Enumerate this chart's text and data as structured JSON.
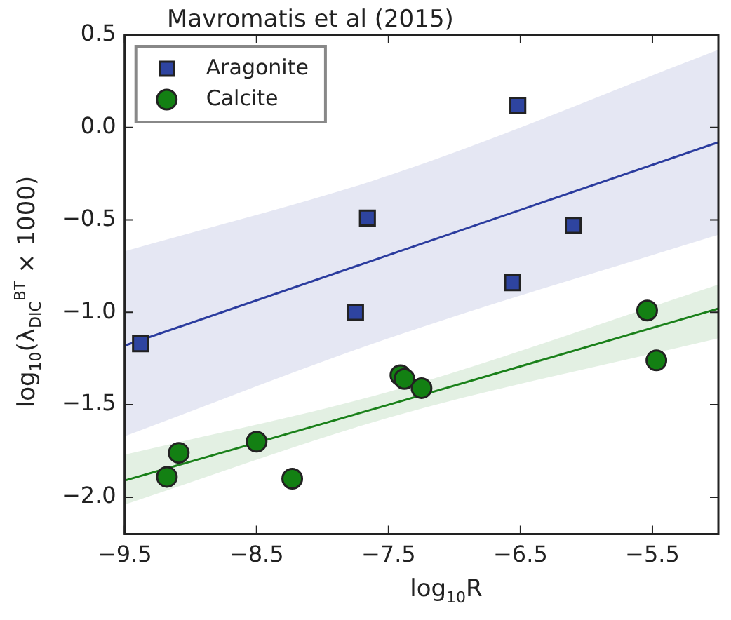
{
  "chart_data": {
    "type": "scatter",
    "title": "Mavromatis et al (2015)",
    "xlabel": "log$_{10}$R",
    "ylabel": "log$_{10}$(λ$_{DIC}$$^{BT}$ × 1000)",
    "xlim": [
      -9.5,
      -5
    ],
    "xticks": [
      -9.5,
      -8.5,
      -7.5,
      -6.5,
      -5.5
    ],
    "ylim": [
      -2.2,
      0.5
    ],
    "yticks": [
      {
        "value": -2,
        "label": "−2.0"
      },
      -1.5,
      {
        "value": -1,
        "label": "−1.0"
      },
      -0.5,
      {
        "value": 0,
        "label": "0.0"
      },
      0.5
    ],
    "grid": false,
    "legend": "top left",
    "series": [
      {
        "type": "line",
        "color": "#2b3c9e",
        "marker": "none",
        "x": [
          -9.5,
          -7.5,
          -5
        ],
        "values": [
          -1.18,
          -0.69,
          -0.08
        ],
        "lower": [
          -1.67,
          -1.14,
          -0.58
        ],
        "upper": [
          -0.67,
          -0.26,
          0.42
        ]
      },
      {
        "type": "line",
        "color": "#1a801a",
        "marker": "none",
        "x": [
          -9.5,
          -7.5,
          -5
        ],
        "values": [
          -1.91,
          -1.5,
          -0.98
        ],
        "lower": [
          -2.04,
          -1.57,
          -1.14
        ],
        "upper": [
          -1.77,
          -1.43,
          -0.85
        ]
      },
      {
        "name": "Aragonite",
        "color": "#2e44a0",
        "marker": "square",
        "x": [
          -9.38,
          -7.75,
          -7.66,
          -6.56,
          -6.52,
          -6.1
        ],
        "values": [
          -1.17,
          -1.0,
          -0.49,
          -0.84,
          0.12,
          -0.53
        ]
      },
      {
        "name": "Calcite",
        "color": "#138013",
        "marker": "circle",
        "x": [
          -9.18,
          -9.09,
          -8.5,
          -8.23,
          -7.41,
          -7.38,
          -7.25,
          -5.54,
          -5.47
        ],
        "values": [
          -1.89,
          -1.76,
          -1.7,
          -1.9,
          -1.34,
          -1.36,
          -1.41,
          -0.99,
          -1.26
        ]
      }
    ]
  }
}
